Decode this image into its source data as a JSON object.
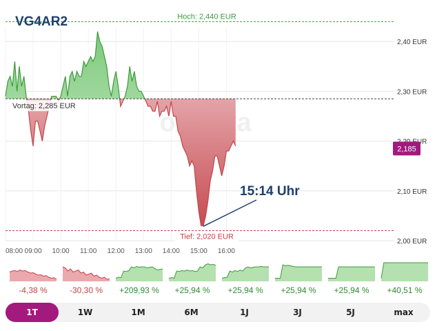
{
  "symbol": "VG4AR2",
  "watermark": "onvista",
  "annotation": "15:14 Uhr",
  "high_label": "Hoch: 2,440 EUR",
  "low_label": "Tief: 2,020 EUR",
  "prev_close_label": "Vortag: 2,285 EUR",
  "last_price_label": "2,185",
  "colors": {
    "up_line": "#3c9a3c",
    "up_fill": "#b5e0b0",
    "down_line": "#c4424a",
    "down_fill": "#eba9ad",
    "accent": "#a3197d",
    "title": "#1e3f6e"
  },
  "chart_data": {
    "type": "area",
    "x_ticks": [
      "08:00",
      "09:00",
      "10:00",
      "11:00",
      "12:00",
      "13:00",
      "14:00",
      "15:00",
      "16:00"
    ],
    "y_ticks": [
      "2,00 EUR",
      "2,10 EUR",
      "2,20 EUR",
      "2,30 EUR",
      "2,40 EUR"
    ],
    "ylim": [
      2.0,
      2.44
    ],
    "baseline": 2.285,
    "high": 2.44,
    "low": 2.02,
    "last": 2.185,
    "series": [
      {
        "x": [
          "08:00",
          "08:05",
          "08:10",
          "08:15",
          "08:20",
          "08:25",
          "08:30",
          "08:35",
          "08:40",
          "08:45",
          "08:50",
          "08:55",
          "09:00",
          "09:05",
          "09:10",
          "09:15",
          "09:20",
          "09:25",
          "09:30",
          "09:35",
          "09:40",
          "09:45",
          "09:50",
          "09:55",
          "10:00",
          "10:05",
          "10:10",
          "10:15",
          "10:20",
          "10:25",
          "10:30",
          "10:35",
          "10:40",
          "10:45",
          "10:50",
          "10:55",
          "11:00",
          "11:05",
          "11:10",
          "11:15",
          "11:20",
          "11:25",
          "11:30",
          "11:35",
          "11:40",
          "11:45",
          "11:50",
          "11:55",
          "12:00",
          "12:05",
          "12:10",
          "12:15",
          "12:20",
          "12:25",
          "12:30",
          "12:35",
          "12:40",
          "12:45",
          "12:50",
          "12:55",
          "13:00",
          "13:05",
          "13:10",
          "13:15",
          "13:20",
          "13:25",
          "13:30",
          "13:35",
          "13:40",
          "13:45",
          "13:50",
          "13:55",
          "14:00",
          "14:05",
          "14:10",
          "14:15",
          "14:20",
          "14:25",
          "14:30",
          "14:35",
          "14:40",
          "14:45",
          "14:50",
          "14:55",
          "15:00",
          "15:05",
          "15:10",
          "15:15",
          "15:20",
          "15:25",
          "15:30",
          "15:35",
          "15:40",
          "15:45",
          "15:50",
          "15:55",
          "16:00",
          "16:05",
          "16:10",
          "16:15",
          "16:20"
        ],
        "values": [
          2.29,
          2.32,
          2.33,
          2.31,
          2.36,
          2.3,
          2.35,
          2.31,
          2.33,
          2.29,
          2.26,
          2.22,
          2.19,
          2.24,
          2.24,
          2.22,
          2.2,
          2.23,
          2.25,
          2.27,
          2.29,
          2.29,
          2.29,
          2.28,
          2.29,
          2.31,
          2.33,
          2.29,
          2.33,
          2.34,
          2.32,
          2.34,
          2.33,
          2.33,
          2.36,
          2.35,
          2.36,
          2.37,
          2.36,
          2.37,
          2.42,
          2.4,
          2.39,
          2.37,
          2.35,
          2.31,
          2.29,
          2.32,
          2.34,
          2.31,
          2.27,
          2.28,
          2.29,
          2.31,
          2.35,
          2.32,
          2.34,
          2.31,
          2.3,
          2.3,
          2.29,
          2.28,
          2.27,
          2.27,
          2.26,
          2.26,
          2.28,
          2.25,
          2.26,
          2.26,
          2.27,
          2.25,
          2.28,
          2.25,
          2.25,
          2.22,
          2.21,
          2.19,
          2.18,
          2.17,
          2.15,
          2.16,
          2.15,
          2.1,
          2.06,
          2.03,
          2.03,
          2.05,
          2.08,
          2.12,
          2.14,
          2.17,
          2.17,
          2.15,
          2.13,
          2.15,
          2.18,
          2.18,
          2.19,
          2.2,
          2.19
        ]
      }
    ]
  },
  "spark_periods": [
    {
      "pct": "-4,38 %",
      "dir": "down"
    },
    {
      "pct": "-30,30 %",
      "dir": "down"
    },
    {
      "pct": "+209,93 %",
      "dir": "up"
    },
    {
      "pct": "+25,94 %",
      "dir": "up"
    },
    {
      "pct": "+25,94 %",
      "dir": "up"
    },
    {
      "pct": "+25,94 %",
      "dir": "up"
    },
    {
      "pct": "+25,94 %",
      "dir": "up"
    },
    {
      "pct": "+40,51 %",
      "dir": "up"
    }
  ],
  "range_tabs": [
    "1T",
    "1W",
    "1M",
    "6M",
    "1J",
    "3J",
    "5J",
    "max"
  ],
  "range_active": 0
}
